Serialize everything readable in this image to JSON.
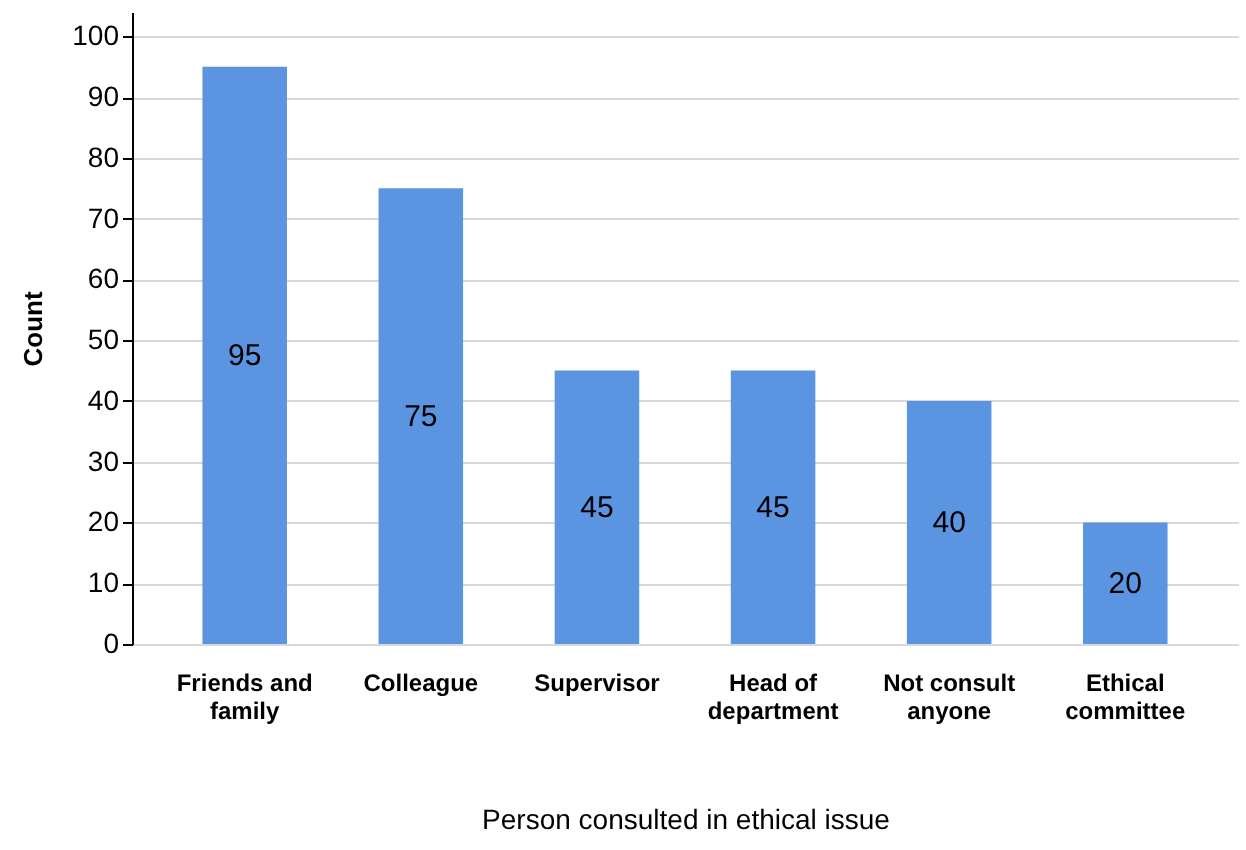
{
  "chart_data": {
    "type": "bar",
    "xlabel": "Person consulted in ethical issue",
    "ylabel": "Count",
    "categories": [
      "Friends and family",
      "Colleague",
      "Supervisor",
      "Head of department",
      "Not consult anyone",
      "Ethical committee"
    ],
    "values": [
      95,
      75,
      45,
      45,
      40,
      20
    ],
    "color": "#5b94e0",
    "ylim": [
      0,
      104
    ],
    "yticks": [
      0,
      10,
      20,
      30,
      40,
      50,
      60,
      70,
      80,
      90,
      100
    ],
    "grid": "y",
    "data_labels": true
  }
}
